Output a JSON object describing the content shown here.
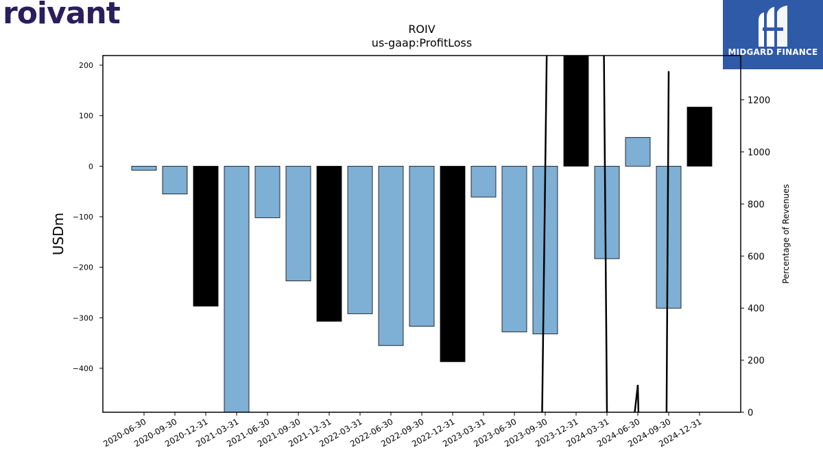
{
  "logo": {
    "text": "roivant",
    "color": "#2a1e5c"
  },
  "badge": {
    "text": "MIDGARD FINANCE",
    "background": "#2f5aa8",
    "icon": "midgard-m-icon"
  },
  "chart_data": {
    "type": "bar",
    "title": "ROIV",
    "subtitle": "us-gaap:ProfitLoss",
    "ylabel": "USDm",
    "y2label": "Percentage of Revenues",
    "categories": [
      "2020-06-30",
      "2020-09-30",
      "2020-12-31",
      "2021-03-31",
      "2021-06-30",
      "2021-09-30",
      "2021-12-31",
      "2022-03-31",
      "2022-06-30",
      "2022-09-30",
      "2022-12-31",
      "2023-03-31",
      "2023-06-30",
      "2023-09-30",
      "2023-12-31",
      "2024-03-31",
      "2024-06-30",
      "2024-09-30",
      "2024-12-31"
    ],
    "values": [
      -8,
      -55,
      -277,
      -490,
      -102,
      -227,
      -307,
      -292,
      -355,
      -317,
      -387,
      -61,
      -328,
      -332,
      220,
      -183,
      57,
      -281,
      117
    ],
    "bar_kinds": [
      "quarter",
      "quarter",
      "annual",
      "quarter",
      "quarter",
      "quarter",
      "annual",
      "quarter",
      "quarter",
      "quarter",
      "annual",
      "quarter",
      "quarter",
      "quarter",
      "annual",
      "quarter",
      "quarter",
      "quarter",
      "annual"
    ],
    "colors": {
      "quarter": "#7eafd4",
      "annual": "#000000",
      "line": "#000000"
    },
    "ylim": [
      -487,
      219
    ],
    "yticks": [
      200,
      100,
      0,
      -100,
      -200,
      -300,
      -400
    ],
    "y2lim": [
      0,
      1370
    ],
    "y2ticks": [
      0,
      200,
      400,
      600,
      800,
      1000,
      1200
    ],
    "line_segments": [
      {
        "x": [
          12.9,
          13.05
        ],
        "y": [
          0,
          1400
        ]
      },
      {
        "x": [
          14.9,
          15.0
        ],
        "y": [
          1400,
          0
        ]
      },
      {
        "x": [
          15.9,
          16.0,
          16.02
        ],
        "y": [
          0,
          105,
          0
        ]
      },
      {
        "x": [
          16.93,
          17.0
        ],
        "y": [
          0,
          1310
        ]
      }
    ],
    "grid": false,
    "legend": "none"
  }
}
